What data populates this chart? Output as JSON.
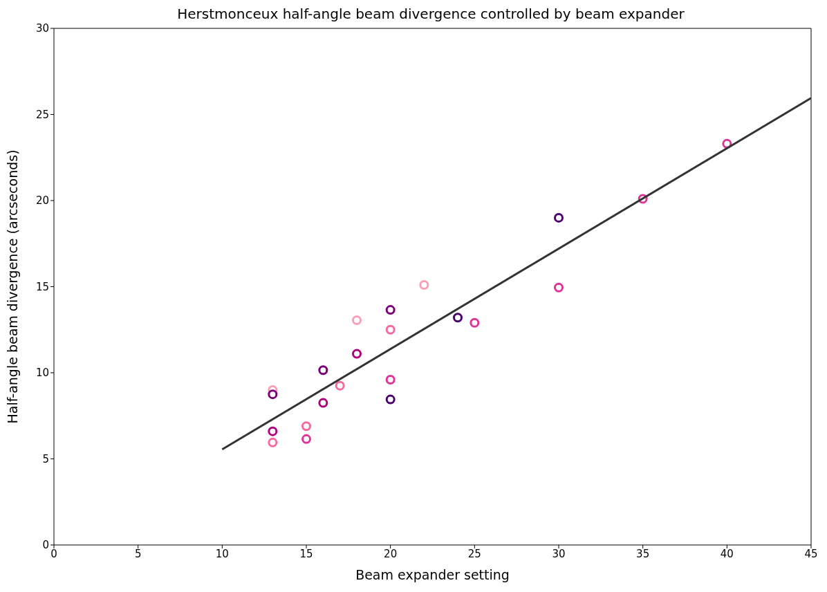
{
  "chart_data": {
    "type": "scatter",
    "title": "Herstmonceux half-angle beam divergence controlled by beam expander",
    "xlabel": "Beam expander setting",
    "ylabel": "Half-angle beam divergence (arcseconds)",
    "xlim": [
      0,
      45
    ],
    "xticks": [
      0,
      5,
      10,
      15,
      20,
      25,
      30,
      35,
      40,
      45
    ],
    "ylim": [
      0,
      30
    ],
    "yticks": [
      0,
      5,
      10,
      15,
      20,
      25,
      30
    ],
    "grid": false,
    "legend": false,
    "series": [
      {
        "marker": "circle",
        "x": [
          13,
          13,
          13,
          13,
          15,
          15,
          16,
          16,
          17,
          18,
          18,
          20,
          20,
          20,
          20,
          22,
          24,
          25,
          30,
          30,
          35,
          40
        ],
        "values": [
          9.0,
          8.75,
          6.6,
          5.95,
          6.9,
          6.15,
          10.15,
          8.25,
          9.25,
          13.05,
          11.1,
          13.65,
          12.5,
          9.6,
          8.45,
          15.1,
          13.2,
          12.9,
          19.0,
          14.95,
          20.1,
          23.3
        ],
        "colors": [
          "#fa9fb5",
          "#7a0177",
          "#ae017e",
          "#f768a1",
          "#f768a1",
          "#dd3497",
          "#7a0177",
          "#ae017e",
          "#f768a1",
          "#fa9fb5",
          "#ae017e",
          "#7a0177",
          "#f768a1",
          "#dd3497",
          "#49006a",
          "#fa9fb5",
          "#49006a",
          "#dd3497",
          "#49006a",
          "#dd3497",
          "#dd3497",
          "#dd3497"
        ]
      },
      {
        "type": "line",
        "x": [
          10,
          45
        ],
        "values": [
          5.55,
          25.95
        ],
        "color": "#333333",
        "line_style": "solid",
        "marker": "none"
      }
    ]
  }
}
